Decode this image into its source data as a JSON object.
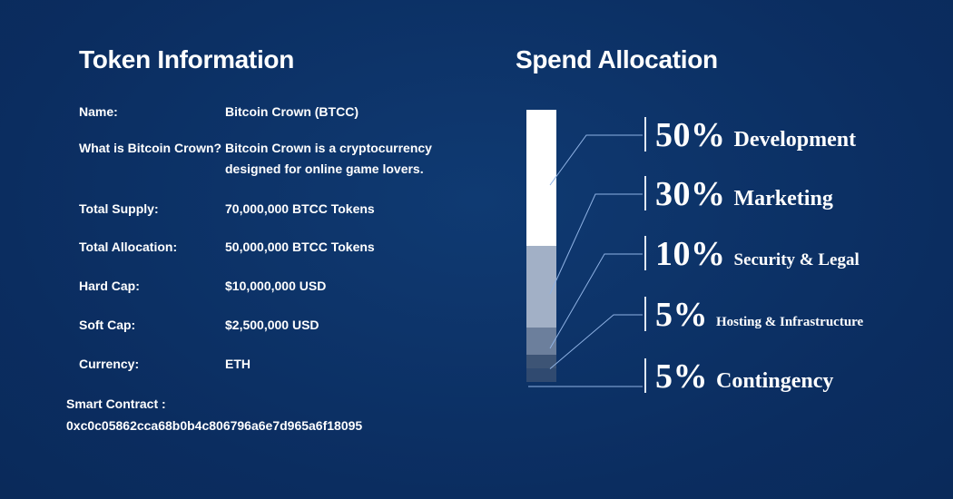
{
  "token_info": {
    "title": "Token Information",
    "rows": [
      {
        "label": "Name:",
        "value": "Bitcoin Crown (BTCC)"
      },
      {
        "label": "What is Bitcoin Crown?",
        "value": "Bitcoin Crown is a cryptocurrency designed for online game lovers."
      },
      {
        "label": "Total Supply:",
        "value": "70,000,000 BTCC Tokens"
      },
      {
        "label": "Total Allocation:",
        "value": "50,000,000 BTCC Tokens"
      },
      {
        "label": "Hard Cap:",
        "value": "$10,000,000 USD"
      },
      {
        "label": "Soft Cap:",
        "value": "$2,500,000 USD"
      },
      {
        "label": "Currency:",
        "value": "ETH"
      }
    ],
    "smart_contract_label": "Smart Contract :",
    "smart_contract_address": "0xc0c05862cca68b0b4c806796a6e7d965a6f18095"
  },
  "spend_allocation": {
    "title": "Spend Allocation"
  },
  "chart_data": {
    "type": "bar",
    "stacked": true,
    "title": "Spend Allocation",
    "categories": [
      "Development",
      "Marketing",
      "Security & Legal",
      "Hosting & Infrastructure",
      "Contingency"
    ],
    "values": [
      50,
      30,
      10,
      5,
      5
    ],
    "value_labels": [
      "50%",
      "30%",
      "10%",
      "5%",
      "5%"
    ],
    "unit": "%",
    "colors": [
      "#ffffff",
      "#a2b0c6",
      "#6c7f9c",
      "#3d5475",
      "#304a70"
    ]
  }
}
